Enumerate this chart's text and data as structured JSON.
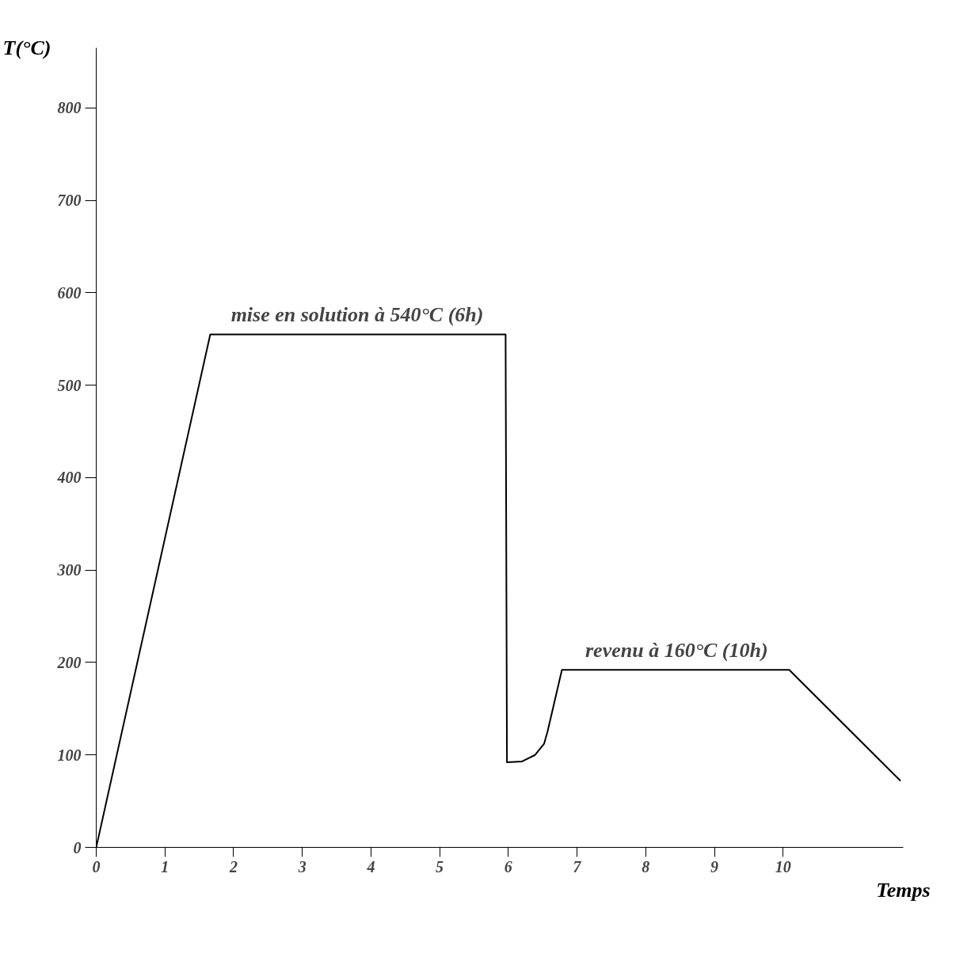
{
  "chart_data": {
    "type": "line",
    "xlabel": "Temps",
    "ylabel": "T(°C)",
    "x": [
      0,
      1.66,
      5.96,
      5.98,
      6.2,
      6.39,
      6.52,
      6.57,
      6.78,
      10.09,
      11.71
    ],
    "values": [
      0,
      555,
      555,
      92,
      93,
      100,
      112,
      125,
      192,
      192,
      72
    ],
    "color": "#000000",
    "xlim": [
      0,
      11.75
    ],
    "ylim": [
      0,
      865
    ],
    "xticks": [
      0,
      1,
      2,
      3,
      4,
      5,
      6,
      7,
      8,
      9,
      10
    ],
    "yticks": [
      0,
      100,
      200,
      300,
      400,
      500,
      600,
      700,
      800
    ],
    "grid": false,
    "annotations": [
      {
        "text": "mise en solution à 540°C (6h)",
        "x": 3.8,
        "y": 555
      },
      {
        "text": "revenu à 160°C (10h)",
        "x": 8.45,
        "y": 192
      }
    ]
  }
}
